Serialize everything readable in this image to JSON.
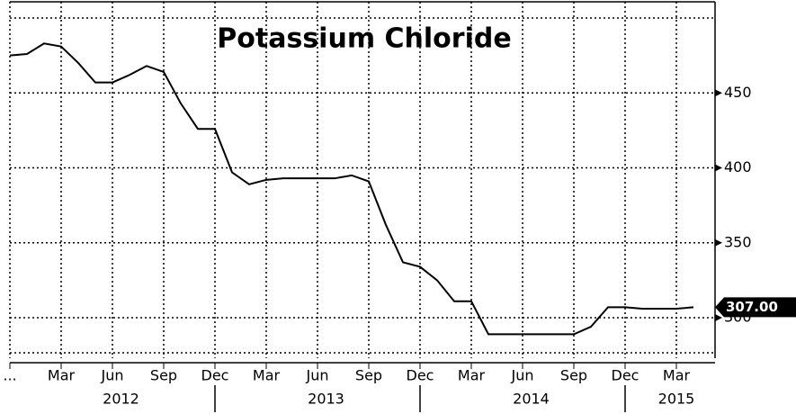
{
  "chart_data": {
    "type": "line",
    "title": "Potassium Chloride",
    "x": [
      "2011-12",
      "2012-01",
      "2012-02",
      "2012-03",
      "2012-04",
      "2012-05",
      "2012-06",
      "2012-07",
      "2012-08",
      "2012-09",
      "2012-10",
      "2012-11",
      "2012-12",
      "2013-01",
      "2013-02",
      "2013-03",
      "2013-04",
      "2013-05",
      "2013-06",
      "2013-07",
      "2013-08",
      "2013-09",
      "2013-10",
      "2013-11",
      "2013-12",
      "2014-01",
      "2014-02",
      "2014-03",
      "2014-04",
      "2014-05",
      "2014-06",
      "2014-07",
      "2014-08",
      "2014-09",
      "2014-10",
      "2014-11",
      "2014-12",
      "2015-01",
      "2015-02",
      "2015-03",
      "2015-04"
    ],
    "series": [
      {
        "name": "Potassium Chloride",
        "color": "#000000",
        "values": [
          475,
          476,
          483,
          481,
          470,
          457,
          457,
          462,
          468,
          464,
          443,
          426,
          426,
          397,
          389,
          392,
          393,
          393,
          393,
          393,
          395,
          391,
          362,
          337,
          334,
          325,
          311,
          311,
          289,
          289,
          289,
          289,
          289,
          289,
          294,
          307,
          307,
          306,
          306,
          306,
          307
        ]
      }
    ],
    "xlim": [
      "2011-12",
      "2015-05"
    ],
    "xticks": [
      {
        "value": "2011-12",
        "label": "..."
      },
      {
        "value": "2012-03",
        "label": "Mar"
      },
      {
        "value": "2012-06",
        "label": "Jun"
      },
      {
        "value": "2012-09",
        "label": "Sep"
      },
      {
        "value": "2012-12",
        "label": "Dec"
      },
      {
        "value": "2013-03",
        "label": "Mar"
      },
      {
        "value": "2013-06",
        "label": "Jun"
      },
      {
        "value": "2013-09",
        "label": "Sep"
      },
      {
        "value": "2013-12",
        "label": "Dec"
      },
      {
        "value": "2014-03",
        "label": "Mar"
      },
      {
        "value": "2014-06",
        "label": "Jun"
      },
      {
        "value": "2014-09",
        "label": "Sep"
      },
      {
        "value": "2014-12",
        "label": "Dec"
      },
      {
        "value": "2015-03",
        "label": "Mar"
      }
    ],
    "years": [
      "2012",
      "2013",
      "2014",
      "2015"
    ],
    "ylim": [
      273,
      500
    ],
    "yticks": [
      300,
      350,
      400,
      450
    ],
    "grid": true,
    "last_value": {
      "value": 307,
      "label": "307.00"
    }
  }
}
